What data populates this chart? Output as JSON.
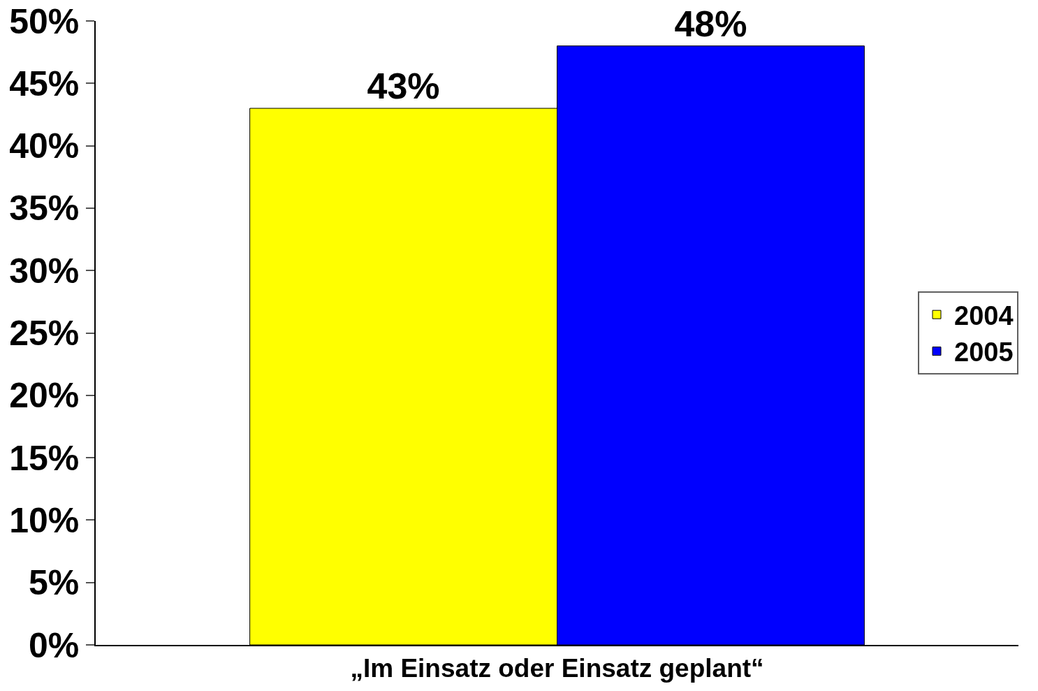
{
  "chart_data": {
    "type": "bar",
    "categories": [
      "„Im Einsatz oder Einsatz geplant“"
    ],
    "series": [
      {
        "name": "2004",
        "color": "#ffff00",
        "values": [
          43
        ],
        "value_labels": [
          "43%"
        ]
      },
      {
        "name": "2005",
        "color": "#0000ff",
        "values": [
          48
        ],
        "value_labels": [
          "48%"
        ]
      }
    ],
    "ylim": [
      0,
      50
    ],
    "yticks": [
      {
        "value": 0,
        "label": "0%"
      },
      {
        "value": 5,
        "label": "5%"
      },
      {
        "value": 10,
        "label": "10%"
      },
      {
        "value": 15,
        "label": "15%"
      },
      {
        "value": 20,
        "label": "20%"
      },
      {
        "value": 25,
        "label": "25%"
      },
      {
        "value": 30,
        "label": "30%"
      },
      {
        "value": 35,
        "label": "35%"
      },
      {
        "value": 40,
        "label": "40%"
      },
      {
        "value": 45,
        "label": "45%"
      },
      {
        "value": 50,
        "label": "50%"
      }
    ],
    "legend": "right"
  }
}
